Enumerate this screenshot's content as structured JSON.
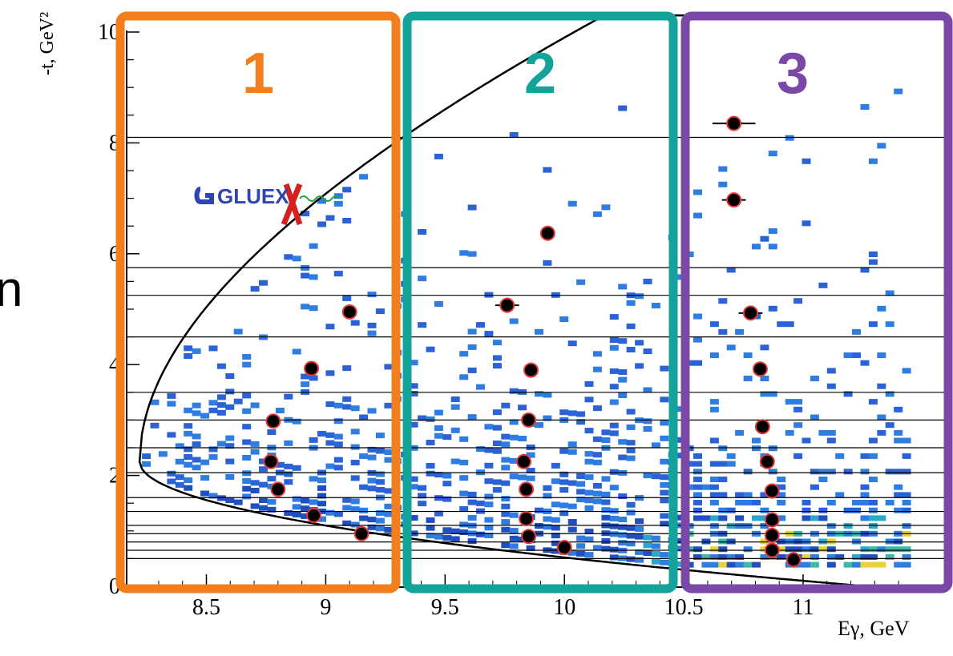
{
  "chart_data": {
    "type": "scatter",
    "title": "",
    "xlabel": "Eγ, GeV",
    "ylabel": "-t, GeV²",
    "xlim": [
      8.22,
      11.42
    ],
    "ylim": [
      0,
      10.2
    ],
    "x_ticks": [
      {
        "value": 8.5,
        "label": "8.5"
      },
      {
        "value": 9,
        "label": "9"
      },
      {
        "value": 9.5,
        "label": "9.5"
      },
      {
        "value": 10,
        "label": "10"
      },
      {
        "value": 10.5,
        "label": "10.5"
      },
      {
        "value": 11,
        "label": "11"
      }
    ],
    "y_ticks": [
      {
        "value": 0,
        "label": "0"
      },
      {
        "value": 2,
        "label": "2"
      },
      {
        "value": 4,
        "label": "4"
      },
      {
        "value": 6,
        "label": "6"
      },
      {
        "value": 8,
        "label": "8"
      },
      {
        "value": 10,
        "label": "10"
      }
    ],
    "t_bin_edges": [
      0.5,
      0.65,
      0.8,
      0.95,
      1.1,
      1.35,
      1.6,
      2.05,
      2.5,
      3.0,
      3.5,
      4.5,
      5.25,
      5.75,
      8.1
    ],
    "kinematic_boundary": {
      "threshold_E": 8.22,
      "threshold_t": 2.25,
      "curve": "parabolic"
    },
    "energy_bins": [
      {
        "label": "1",
        "x_range": [
          8.22,
          9.28
        ],
        "color": "#f27f1b"
      },
      {
        "label": "2",
        "x_range": [
          9.32,
          10.33
        ],
        "color": "#14a39a"
      },
      {
        "label": "3",
        "x_range": [
          10.37,
          11.42
        ],
        "color": "#7b48a8"
      }
    ],
    "points": [
      {
        "bin": 1,
        "x": 9.15,
        "y": 0.95,
        "xerr": 0.03
      },
      {
        "bin": 1,
        "x": 8.95,
        "y": 1.28,
        "xerr": 0.02
      },
      {
        "bin": 1,
        "x": 8.8,
        "y": 1.75,
        "xerr": 0.02
      },
      {
        "bin": 1,
        "x": 8.77,
        "y": 2.25,
        "xerr": 0.02
      },
      {
        "bin": 1,
        "x": 8.78,
        "y": 2.98,
        "xerr": 0.02
      },
      {
        "bin": 1,
        "x": 8.94,
        "y": 3.93,
        "xerr": 0.02
      },
      {
        "bin": 1,
        "x": 9.1,
        "y": 4.95,
        "xerr": 0.02
      },
      {
        "bin": 2,
        "x": 10.0,
        "y": 0.7,
        "xerr": 0.03
      },
      {
        "bin": 2,
        "x": 9.85,
        "y": 0.9,
        "xerr": 0.02
      },
      {
        "bin": 2,
        "x": 9.84,
        "y": 1.22,
        "xerr": 0.02
      },
      {
        "bin": 2,
        "x": 9.84,
        "y": 1.75,
        "xerr": 0.02
      },
      {
        "bin": 2,
        "x": 9.83,
        "y": 2.25,
        "xerr": 0.02
      },
      {
        "bin": 2,
        "x": 9.85,
        "y": 3.0,
        "xerr": 0.02
      },
      {
        "bin": 2,
        "x": 9.86,
        "y": 3.9,
        "xerr": 0.03
      },
      {
        "bin": 2,
        "x": 9.76,
        "y": 5.07,
        "xerr": 0.05
      },
      {
        "bin": 2,
        "x": 9.93,
        "y": 6.37,
        "xerr": 0.03
      },
      {
        "bin": 3,
        "x": 10.96,
        "y": 0.48,
        "xerr": 0.02
      },
      {
        "bin": 3,
        "x": 10.87,
        "y": 0.65,
        "xerr": 0.02
      },
      {
        "bin": 3,
        "x": 10.87,
        "y": 0.92,
        "xerr": 0.02
      },
      {
        "bin": 3,
        "x": 10.87,
        "y": 1.2,
        "xerr": 0.02
      },
      {
        "bin": 3,
        "x": 10.87,
        "y": 1.72,
        "xerr": 0.02
      },
      {
        "bin": 3,
        "x": 10.85,
        "y": 2.25,
        "xerr": 0.02
      },
      {
        "bin": 3,
        "x": 10.83,
        "y": 2.88,
        "xerr": 0.03
      },
      {
        "bin": 3,
        "x": 10.82,
        "y": 3.92,
        "xerr": 0.03
      },
      {
        "bin": 3,
        "x": 10.78,
        "y": 4.93,
        "xerr": 0.05
      },
      {
        "bin": 3,
        "x": 10.71,
        "y": 6.97,
        "xerr": 0.05
      },
      {
        "bin": 3,
        "x": 10.71,
        "y": 8.35,
        "xerr": 0.09
      }
    ],
    "histogram": {
      "type": "heatmap",
      "colormap": "blue-to-yellow",
      "note": "event density background"
    }
  },
  "logo": {
    "text": "GLUEX",
    "name": "gluex-logo"
  },
  "left_fragment": "n",
  "colors": {
    "axis": "#000000",
    "marker_fill": "#000000",
    "marker_edge": "#e23b3b",
    "bin1": "#f27f1b",
    "bin2": "#14a39a",
    "bin3": "#7b48a8"
  }
}
